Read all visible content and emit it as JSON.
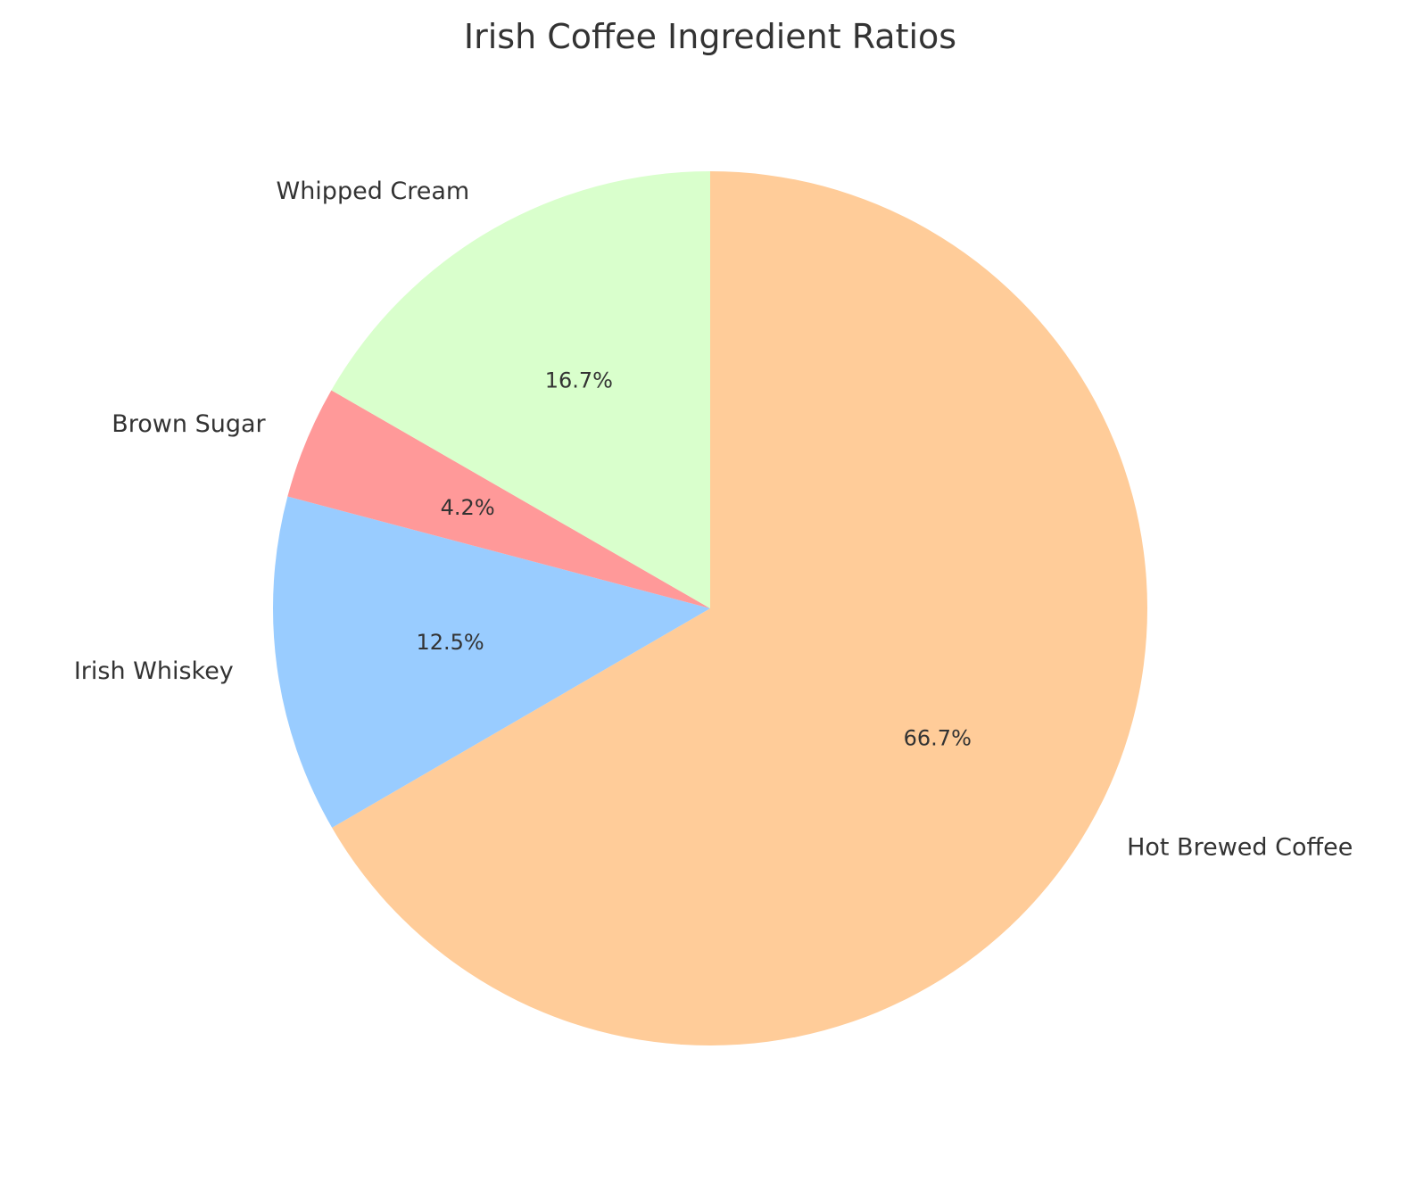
{
  "chart_data": {
    "type": "pie",
    "title": "Irish Coffee Ingredient Ratios",
    "start_angle_deg": 90,
    "direction": "clockwise",
    "slices": [
      {
        "label": "Hot Brewed Coffee",
        "value": 66.7,
        "pct_text": "66.7%",
        "color": "#FFCC99"
      },
      {
        "label": "Irish Whiskey",
        "value": 12.5,
        "pct_text": "12.5%",
        "color": "#99CCFF"
      },
      {
        "label": "Brown Sugar",
        "value": 4.2,
        "pct_text": "4.2%",
        "color": "#FF9999"
      },
      {
        "label": "Whipped Cream",
        "value": 16.7,
        "pct_text": "16.7%",
        "color": "#D9FFCC"
      }
    ]
  }
}
